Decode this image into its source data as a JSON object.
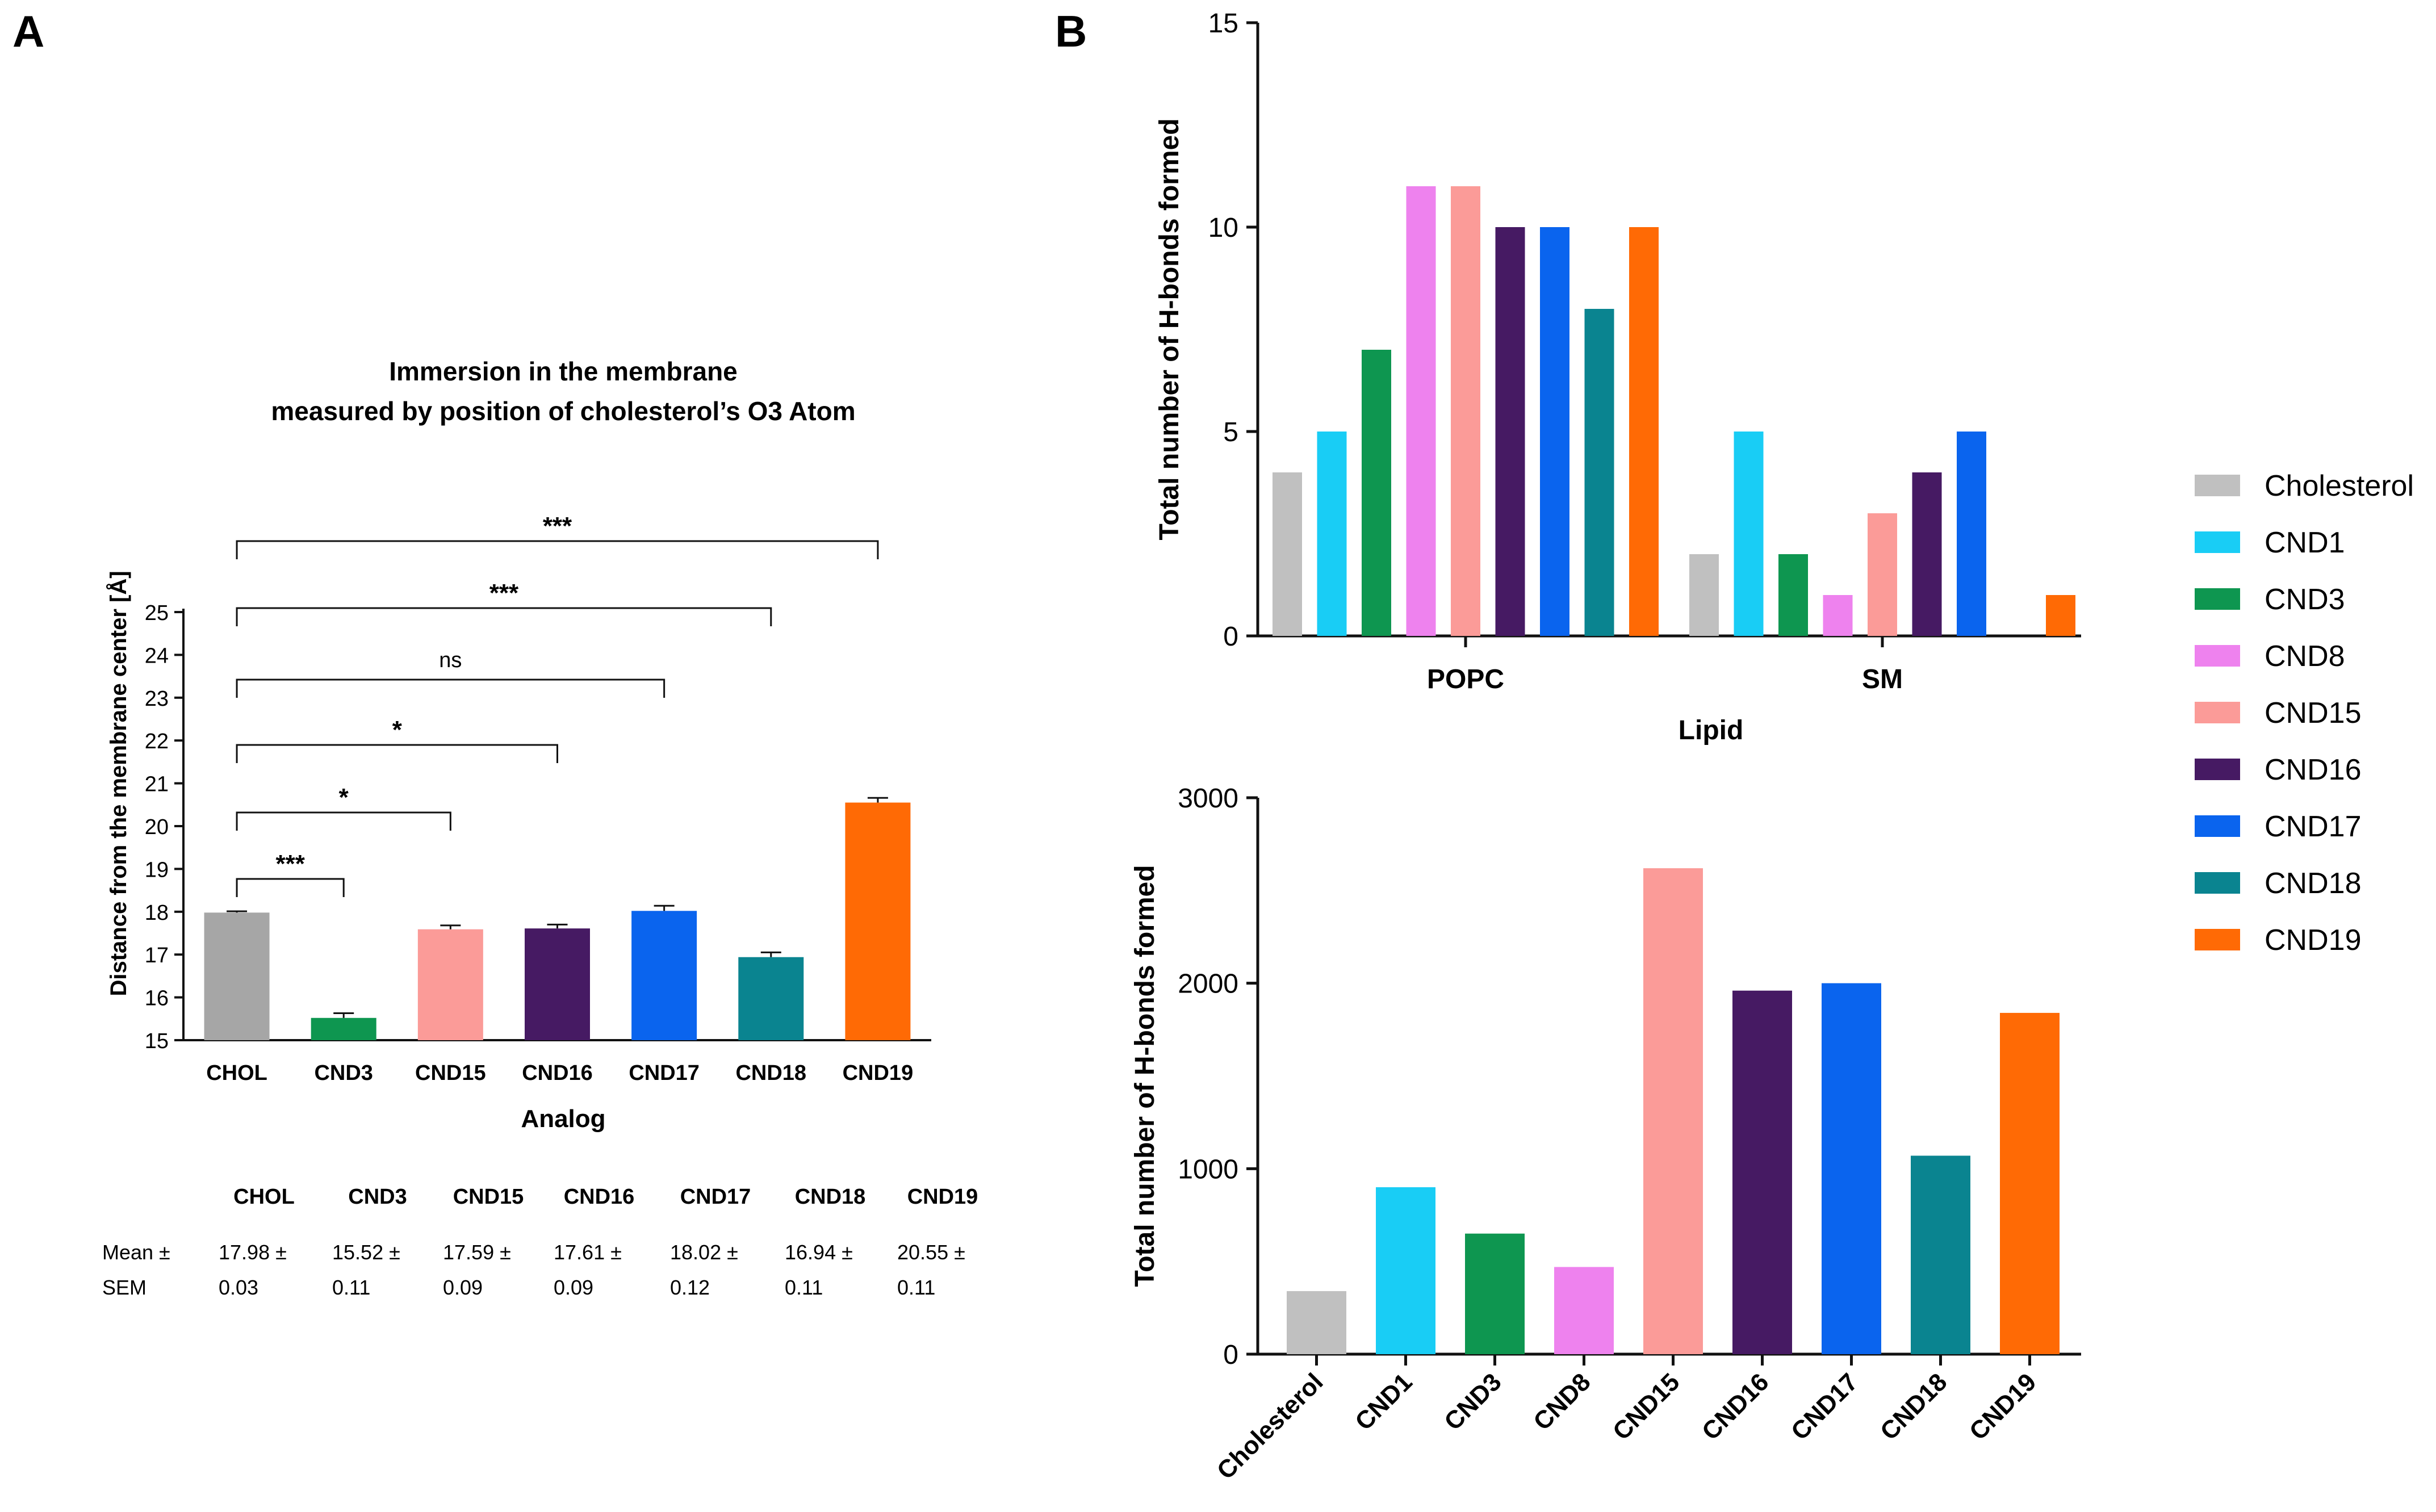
{
  "figure": {
    "panel_a_label": "A",
    "panel_b_label": "B",
    "legend": [
      {
        "name": "Cholesterol",
        "color": "#c0c0c0"
      },
      {
        "name": "CND1",
        "color": "#19cdf5"
      },
      {
        "name": "CND3",
        "color": "#0e9650"
      },
      {
        "name": "CND8",
        "color": "#ee82ee"
      },
      {
        "name": "CND15",
        "color": "#fb9b98"
      },
      {
        "name": "CND16",
        "color": "#461a63"
      },
      {
        "name": "CND17",
        "color": "#0a64ee"
      },
      {
        "name": "CND18",
        "color": "#0a8490"
      },
      {
        "name": "CND19",
        "color": "#ff6a05"
      }
    ]
  },
  "chart_data": [
    {
      "type": "bar",
      "title": "Immersion in the membrane",
      "subtitle": "measured by position of cholesterol’s O3 Atom",
      "xlabel": "Analog",
      "ylabel": "Distance from the membrane center [Å]",
      "ylim": [
        15,
        25
      ],
      "yticks": [
        15,
        16,
        17,
        18,
        19,
        20,
        21,
        22,
        23,
        24,
        25
      ],
      "categories": [
        "CHOL",
        "CND3",
        "CND15",
        "CND16",
        "CND17",
        "CND18",
        "CND19"
      ],
      "values": [
        17.98,
        15.52,
        17.59,
        17.61,
        18.02,
        16.94,
        20.55
      ],
      "errors": [
        0.03,
        0.11,
        0.09,
        0.09,
        0.12,
        0.11,
        0.11
      ],
      "colors": [
        "#a6a6a6",
        "#0e9650",
        "#fb9b98",
        "#461a63",
        "#0a64ee",
        "#0a8490",
        "#ff6a05"
      ],
      "significance": [
        {
          "from": "CHOL",
          "to": "CND3",
          "label": "***"
        },
        {
          "from": "CHOL",
          "to": "CND15",
          "label": "*"
        },
        {
          "from": "CHOL",
          "to": "CND16",
          "label": "*"
        },
        {
          "from": "CHOL",
          "to": "CND17",
          "label": "ns"
        },
        {
          "from": "CHOL",
          "to": "CND18",
          "label": "***"
        },
        {
          "from": "CHOL",
          "to": "CND19",
          "label": "***"
        }
      ],
      "table": {
        "row_labels": [
          [
            "Mean ±",
            "SEM"
          ]
        ],
        "columns": [
          "CHOL",
          "CND3",
          "CND15",
          "CND16",
          "CND17",
          "CND18",
          "CND19"
        ],
        "mean": [
          "17.98 ±",
          "15.52 ±",
          "17.59 ±",
          "17.61 ±",
          "18.02 ±",
          "16.94 ±",
          "20.55 ±"
        ],
        "sem": [
          "0.03",
          "0.11",
          "0.09",
          "0.09",
          "0.12",
          "0.11",
          "0.11"
        ]
      }
    },
    {
      "type": "bar",
      "xlabel": "Lipid",
      "ylabel": "Total number of H-bonds formed",
      "ylim": [
        0,
        15
      ],
      "yticks": [
        0,
        5,
        10,
        15
      ],
      "categories": [
        "POPC",
        "SM"
      ],
      "series": [
        {
          "name": "Cholesterol",
          "values": [
            4,
            2
          ]
        },
        {
          "name": "CND1",
          "values": [
            5,
            5
          ]
        },
        {
          "name": "CND3",
          "values": [
            7,
            2
          ]
        },
        {
          "name": "CND8",
          "values": [
            11,
            1
          ]
        },
        {
          "name": "CND15",
          "values": [
            11,
            3
          ]
        },
        {
          "name": "CND16",
          "values": [
            10,
            4
          ]
        },
        {
          "name": "CND17",
          "values": [
            10,
            5
          ]
        },
        {
          "name": "CND18",
          "values": [
            8,
            0
          ]
        },
        {
          "name": "CND19",
          "values": [
            10,
            1
          ]
        }
      ]
    },
    {
      "type": "bar",
      "ylabel": "Total number of H-bonds formed",
      "ylim": [
        0,
        3000
      ],
      "yticks": [
        0,
        1000,
        2000,
        3000
      ],
      "categories": [
        "Cholesterol",
        "CND1",
        "CND3",
        "CND8",
        "CND15",
        "CND16",
        "CND17",
        "CND18",
        "CND19"
      ],
      "values": [
        340,
        900,
        650,
        470,
        2620,
        1960,
        2000,
        1070,
        1840
      ]
    }
  ]
}
